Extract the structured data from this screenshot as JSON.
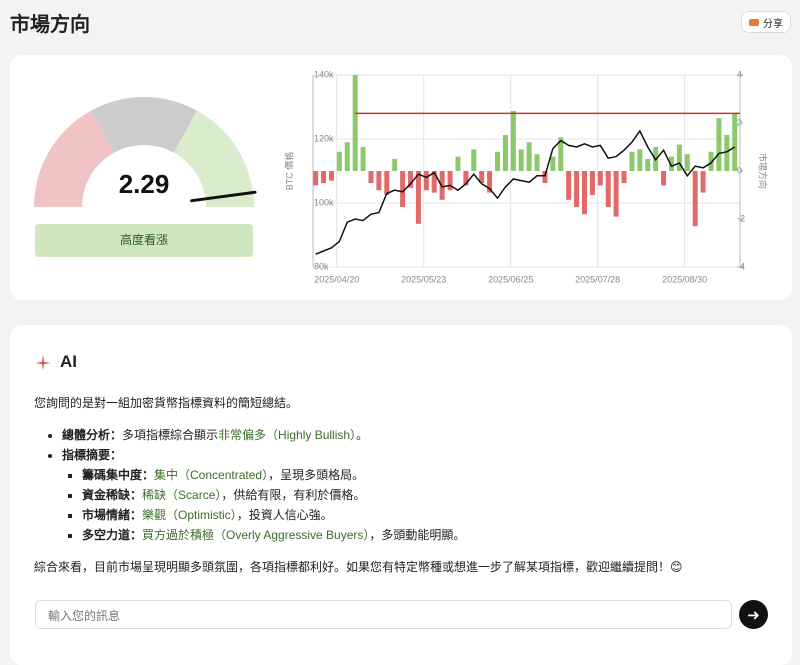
{
  "header": {
    "title": "市場方向",
    "share": "分享"
  },
  "gauge": {
    "value": 2.29,
    "min": -2.5,
    "max": 2.5,
    "needle_color": "#111111",
    "bands": [
      {
        "from": -2.5,
        "to": -0.8,
        "color": "#f0c4c4"
      },
      {
        "from": -0.8,
        "to": 0.8,
        "color": "#cccccc"
      },
      {
        "from": 0.8,
        "to": 2.5,
        "color": "#d9edcc"
      }
    ],
    "label": "高度看漲",
    "label_bg": "#cfe6bf",
    "label_color": "#2f5a22"
  },
  "chart_data": {
    "type": "combo",
    "ylabel": "BTC 價格",
    "y2label": "市場方向",
    "x": [
      "2025/04/12",
      "2025/04/15",
      "2025/04/18",
      "2025/04/21",
      "2025/04/24",
      "2025/04/27",
      "2025/04/30",
      "2025/05/03",
      "2025/05/06",
      "2025/05/09",
      "2025/05/12",
      "2025/05/15",
      "2025/05/18",
      "2025/05/21",
      "2025/05/24",
      "2025/05/27",
      "2025/05/30",
      "2025/06/02",
      "2025/06/05",
      "2025/06/08",
      "2025/06/11",
      "2025/06/14",
      "2025/06/17",
      "2025/06/20",
      "2025/06/23",
      "2025/06/26",
      "2025/06/29",
      "2025/07/02",
      "2025/07/05",
      "2025/07/08",
      "2025/07/11",
      "2025/07/14",
      "2025/07/17",
      "2025/07/20",
      "2025/07/23",
      "2025/07/26",
      "2025/07/29",
      "2025/08/01",
      "2025/08/04",
      "2025/08/07",
      "2025/08/10",
      "2025/08/13",
      "2025/08/16",
      "2025/08/19",
      "2025/08/22",
      "2025/08/25",
      "2025/08/28",
      "2025/08/31",
      "2025/09/03",
      "2025/09/06",
      "2025/09/09",
      "2025/09/12",
      "2025/09/15",
      "2025/09/18"
    ],
    "xlim": [
      "2025/04/11",
      "2025/09/20"
    ],
    "xticks": [
      "2025/04/20",
      "2025/05/23",
      "2025/06/25",
      "2025/07/28",
      "2025/08/30"
    ],
    "ylim": [
      80000,
      140000
    ],
    "yticks": [
      {
        "value": 140000,
        "label": "140k"
      },
      {
        "value": 120000,
        "label": "120k"
      },
      {
        "value": 100000,
        "label": "100k"
      },
      {
        "value": 80000,
        "label": "80k"
      }
    ],
    "y2lim": [
      -4,
      4
    ],
    "y2ticks": [
      4,
      2,
      0,
      -2,
      -4
    ],
    "grid": true,
    "series": [
      {
        "kind": "bar",
        "axis": "y2",
        "color": "#8cc96a",
        "negative_color": "#e06a6a",
        "values": [
          -0.6,
          -0.5,
          -0.4,
          0.8,
          1.2,
          4,
          1.0,
          -0.5,
          -0.8,
          -1.0,
          0.5,
          -1.5,
          -0.7,
          -2.2,
          -0.8,
          -0.9,
          -1.2,
          -0.8,
          0.6,
          -0.6,
          0.9,
          -0.5,
          -0.9,
          0.8,
          1.5,
          2.5,
          0.9,
          1.2,
          0.7,
          -0.5,
          0.6,
          1.4,
          -1.2,
          -1.5,
          -1.8,
          -1.0,
          -0.6,
          -1.5,
          -1.9,
          -0.5,
          0.8,
          0.9,
          0.5,
          1.0,
          -0.6,
          0.6,
          1.1,
          0.7,
          -2.3,
          -0.9,
          0.8,
          2.2,
          1.5,
          2.4
        ]
      },
      {
        "kind": "line",
        "axis": "y",
        "color": "#111111",
        "values": [
          84000,
          85000,
          86000,
          88000,
          94000,
          95000,
          94500,
          96500,
          97000,
          103000,
          104000,
          103500,
          106000,
          109000,
          108000,
          109500,
          105000,
          105500,
          104000,
          106000,
          109000,
          106000,
          104500,
          101500,
          105000,
          107500,
          107000,
          106500,
          108500,
          108500,
          117000,
          119500,
          118000,
          117500,
          118500,
          117500,
          118000,
          114000,
          114500,
          116500,
          119000,
          122500,
          117500,
          113500,
          116500,
          111500,
          112500,
          108500,
          111500,
          111000,
          112500,
          115500,
          116000,
          117500
        ]
      }
    ],
    "reference_line": {
      "value": 2.4,
      "axis": "y2",
      "start": "2025/04/27",
      "color": "#c0392b"
    }
  },
  "ai": {
    "title": "AI",
    "intro": "您詢問的是對一組加密貨幣指標資料的簡短總結。",
    "items": [
      {
        "segments": [
          {
            "text": "總體分析：",
            "style": "bold"
          },
          {
            "text": "多項指標綜合顯示"
          },
          {
            "text": "非常偏多（Highly Bullish）",
            "style": "highlight"
          },
          {
            "text": "。"
          }
        ]
      },
      {
        "segments": [
          {
            "text": "指標摘要：",
            "style": "bold"
          }
        ],
        "children": [
          {
            "segments": [
              {
                "text": "籌碼集中度：",
                "style": "bold"
              },
              {
                "text": "集中（Concentrated）",
                "style": "highlight"
              },
              {
                "text": "，呈現多頭格局。"
              }
            ]
          },
          {
            "segments": [
              {
                "text": "資金稀缺：",
                "style": "bold"
              },
              {
                "text": "稀缺（Scarce）",
                "style": "highlight"
              },
              {
                "text": "，供給有限，有利於價格。"
              }
            ]
          },
          {
            "segments": [
              {
                "text": "市場情緒：",
                "style": "bold"
              },
              {
                "text": "樂觀（Optimistic）",
                "style": "highlight"
              },
              {
                "text": "，投資人信心強。"
              }
            ]
          },
          {
            "segments": [
              {
                "text": "多空力道：",
                "style": "bold"
              },
              {
                "text": "買方過於積極（Overly Aggressive Buyers）",
                "style": "highlight"
              },
              {
                "text": "，多頭動能明顯。"
              }
            ]
          }
        ]
      }
    ],
    "outro": "綜合來看，目前市場呈現明顯多頭氛圍，各項指標都利好。如果您有特定幣種或想進一步了解某項指標，歡迎繼續提問！😊",
    "input_placeholder": "輸入您的訊息"
  }
}
